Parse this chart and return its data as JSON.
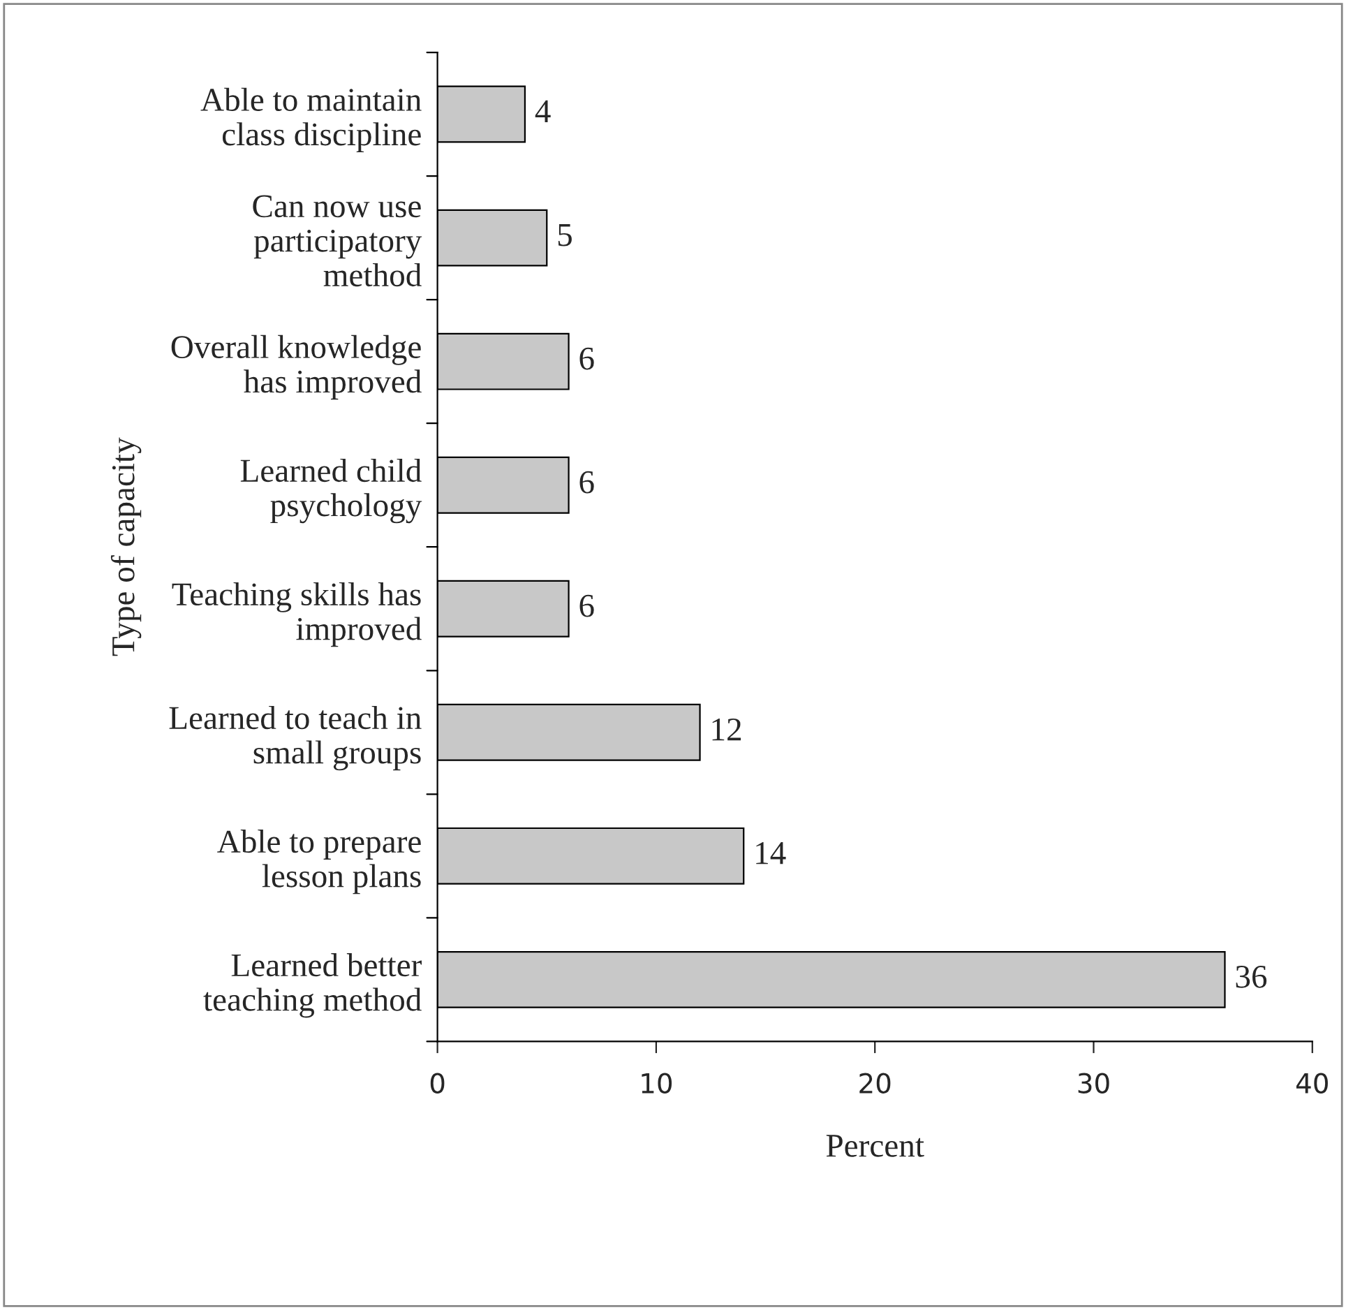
{
  "chart_data": {
    "type": "bar",
    "orientation": "horizontal",
    "xlabel": "Percent",
    "ylabel": "Type of capacity",
    "categories": [
      "Able to maintain class discipline",
      "Can now use participatory method",
      "Overall knowledge has improved",
      "Learned child psychology",
      "Teaching skills has improved",
      "Learned to teach in small groups",
      "Able to prepare lesson plans",
      "Learned better teaching method"
    ],
    "values": [
      4,
      5,
      6,
      6,
      6,
      12,
      14,
      36
    ],
    "color": "#c8c8c8",
    "xlim": [
      0,
      40
    ],
    "xticks": [
      0,
      10,
      20,
      30,
      40
    ],
    "data_labels": true,
    "grid": false,
    "legend": false
  }
}
